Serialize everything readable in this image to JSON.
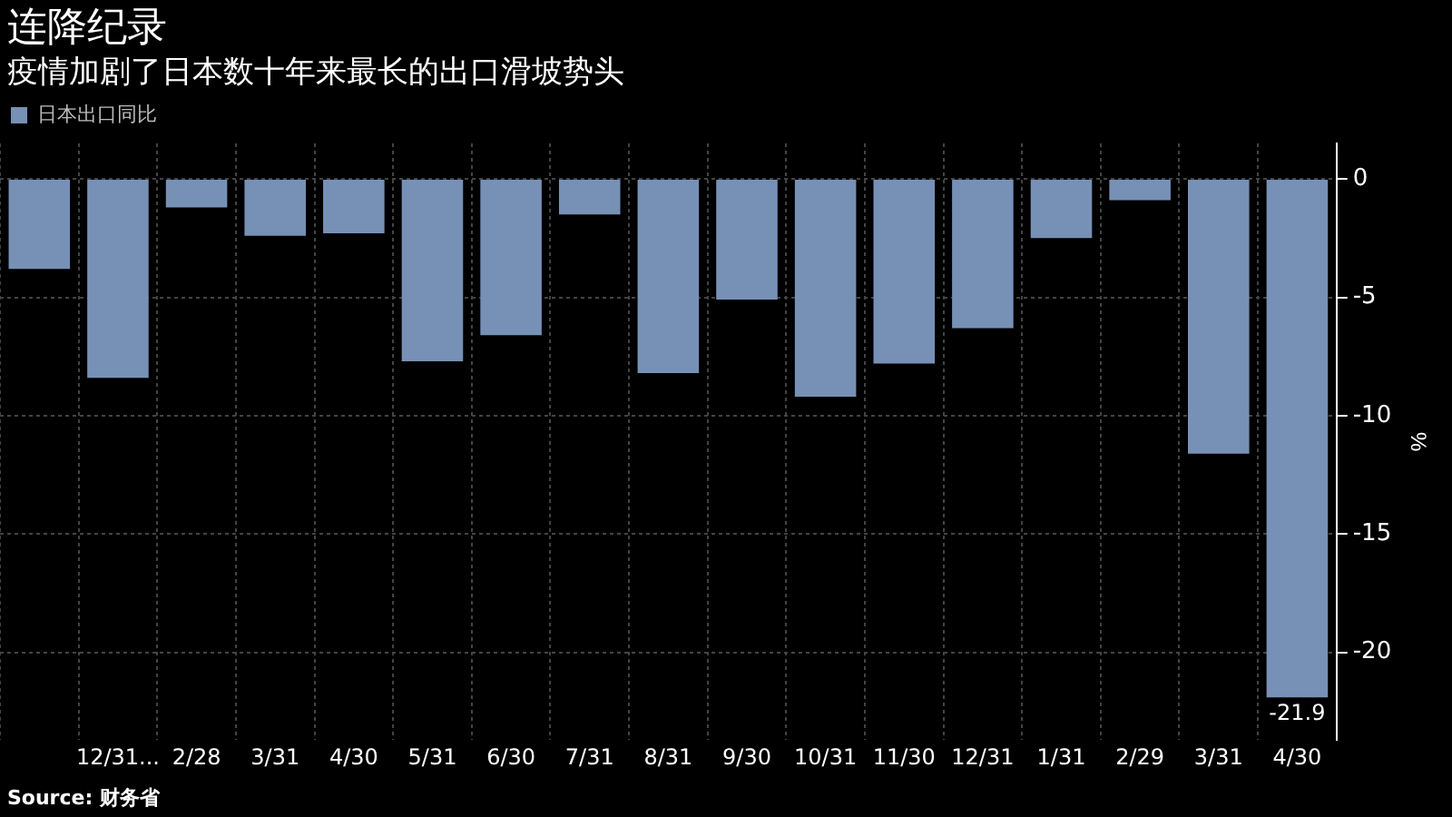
{
  "chart_data": {
    "type": "bar",
    "title": "连降纪录",
    "subtitle": "疫情加剧了日本数十年来最长的出口滑坡势头",
    "ylabel": "%",
    "categories": [
      null,
      "12/31...",
      "2/28",
      "3/31",
      "4/30",
      "5/31",
      "6/30",
      "7/31",
      "8/31",
      "9/30",
      "10/31",
      "11/30",
      "12/31",
      "1/31",
      "2/29",
      "3/31",
      "4/30"
    ],
    "series": [
      {
        "name": "日本出口同比",
        "color": "#7790b6",
        "values": [
          -3.8,
          -8.4,
          -1.2,
          -2.4,
          -2.3,
          -7.7,
          -6.6,
          -1.5,
          -8.2,
          -5.1,
          -9.2,
          -7.8,
          -6.3,
          -2.5,
          -0.9,
          -11.6,
          -21.9
        ],
        "value_labels": [
          null,
          null,
          null,
          null,
          null,
          null,
          null,
          null,
          null,
          null,
          null,
          null,
          null,
          null,
          null,
          null,
          "-21.9"
        ]
      }
    ],
    "ylim": [
      -23.7,
      1.5
    ],
    "yticks": [
      0,
      -5,
      -10,
      -15,
      -20
    ],
    "grid": true,
    "legend": "top left",
    "annotations": [
      "Source: 财务省"
    ]
  }
}
